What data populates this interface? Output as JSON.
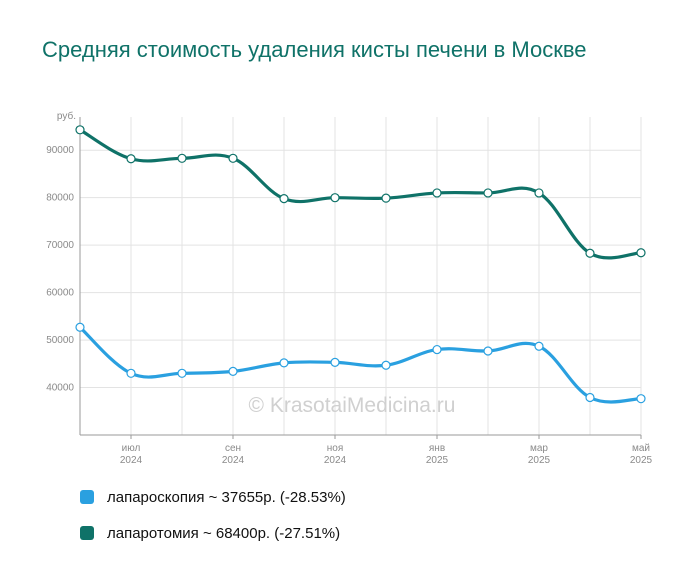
{
  "title": "Средняя стоимость удаления кисты печени в Москве",
  "watermark": "© KrasotaiMedicina.ru",
  "legend": [
    {
      "label": "лапароскопия ~ 37655р. (-28.53%)",
      "color": "#2aa0e0"
    },
    {
      "label": "лапаротомия ~ 68400р. (-27.51%)",
      "color": "#0f7268"
    }
  ],
  "chart_data": {
    "type": "line",
    "title": "Средняя стоимость удаления кисты печени в Москве",
    "ylabel": "руб.",
    "ylim": [
      30000,
      97000
    ],
    "yticks": [
      "40000",
      "50000",
      "60000",
      "70000",
      "80000",
      "90000"
    ],
    "x_ticks": [
      {
        "month": "июл",
        "year": "2024",
        "index": 1
      },
      {
        "month": "сен",
        "year": "2024",
        "index": 3
      },
      {
        "month": "ноя",
        "year": "2024",
        "index": 5
      },
      {
        "month": "янв",
        "year": "2025",
        "index": 7
      },
      {
        "month": "мар",
        "year": "2025",
        "index": 9
      },
      {
        "month": "май",
        "year": "2025",
        "index": 11
      }
    ],
    "x": [
      "2024-06",
      "2024-07",
      "2024-08",
      "2024-09",
      "2024-10",
      "2024-11",
      "2024-12",
      "2025-01",
      "2025-02",
      "2025-03",
      "2025-04",
      "2025-05"
    ],
    "grid": true,
    "series": [
      {
        "name": "лапароскопия ~ 37655р. (-28.53%)",
        "color": "#2aa0e0",
        "values": [
          52700,
          43000,
          43000,
          43400,
          45200,
          45300,
          44700,
          48000,
          47700,
          48700,
          37900,
          37655
        ]
      },
      {
        "name": "лапаротомия ~ 68400р. (-27.51%)",
        "color": "#0f7268",
        "values": [
          94300,
          88200,
          88300,
          88300,
          79800,
          80000,
          79900,
          81000,
          81000,
          81000,
          68300,
          68400
        ]
      }
    ]
  }
}
